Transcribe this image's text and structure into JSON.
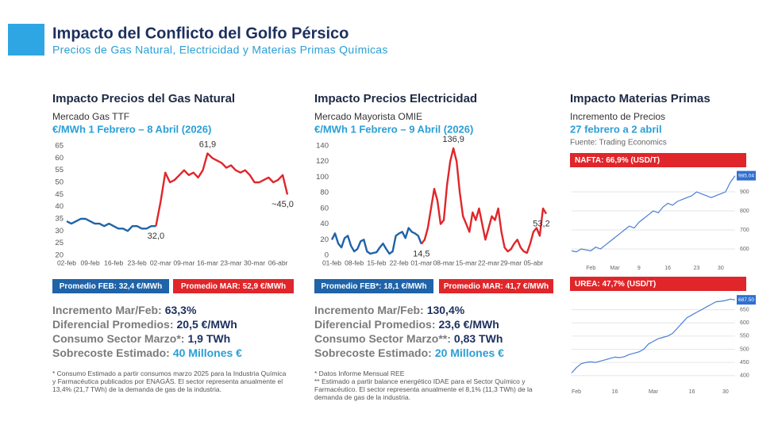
{
  "header": {
    "title": "Impacto del Conflicto del Golfo Pérsico",
    "subtitle": "Precios de Gas Natural, Electricidad y Materias Primas Químicas"
  },
  "panels": [
    {
      "heading": "Impacto Precios del Gas Natural",
      "subheading": "Mercado Gas TTF",
      "period": "€/MWh 1 Febrero – 8 Abril (2026)",
      "stats": [
        [
          "Incremento Mar/Feb:",
          "63,3%"
        ],
        [
          "Diferencial Promedios:",
          "20,5 €/MWh"
        ],
        [
          "Consumo Sector Marzo*:",
          "1,9 TWh"
        ],
        [
          "Sobrecoste Estimado:",
          "40 Millones €"
        ]
      ],
      "footnotes": [
        "* Consumo Estimado a partir consumos marzo 2025 para la Industria Química y Farmacéutica publicados por ENAGÁS. El sector representa anualmente el 13,4% (21,7 TWh) de la demanda de gas de la industria."
      ]
    },
    {
      "heading": "Impacto Precios Electricidad",
      "subheading": "Mercado Mayorista OMIE",
      "period": "€/MWh 1 Febrero – 9 Abril (2026)",
      "stats": [
        [
          "Incremento Mar/Feb:",
          "130,4%"
        ],
        [
          "Diferencial Promedios:",
          "23,6 €/MWh"
        ],
        [
          "Consumo Sector Marzo**:",
          "0,83 TWh"
        ],
        [
          "Sobrecoste Estimado:",
          "20 Millones €"
        ]
      ],
      "footnotes": [
        "*    Datos Informe Mensual REE",
        "**  Estimado a partir balance energético IDAE para el Sector Químico y Farmacéutico. El sector representa anualmente el 8,1% (11,3 TWh) de la demanda de gas de la industria."
      ]
    },
    {
      "heading": "Impacto Materias Primas",
      "subheading": "Incremento de Precios",
      "period": "27 febrero a 2 abril",
      "source": "Fuente: Trading Economics"
    }
  ],
  "chart_data": [
    {
      "type": "line",
      "categories": [
        "02-feb",
        null,
        null,
        null,
        null,
        "09-feb",
        null,
        null,
        null,
        null,
        "16-feb",
        null,
        null,
        null,
        null,
        "23-feb",
        null,
        null,
        null,
        null,
        "02-mar",
        null,
        null,
        null,
        null,
        "09-mar",
        null,
        null,
        null,
        null,
        "16-mar",
        null,
        null,
        null,
        null,
        "23-mar",
        null,
        null,
        null,
        null,
        "30-mar",
        null,
        null,
        null,
        null,
        "06-abr",
        null,
        null
      ],
      "ylim": [
        20,
        65
      ],
      "yticks": [
        20,
        25,
        30,
        35,
        40,
        45,
        50,
        55,
        60,
        65
      ],
      "grid": false,
      "yaxis_position": "left",
      "series": [
        {
          "name": "Promedio FEB: 32,4 €/MWh",
          "color": "#1f63a8",
          "values": [
            34,
            33,
            34,
            35,
            35,
            34,
            33,
            33,
            32,
            33,
            32,
            31,
            31,
            30,
            32,
            32,
            31,
            31,
            32,
            32,
            null,
            null,
            null,
            null,
            null,
            null,
            null,
            null,
            null,
            null,
            null,
            null,
            null,
            null,
            null,
            null,
            null,
            null,
            null,
            null,
            null,
            null,
            null,
            null,
            null,
            null,
            null,
            null
          ]
        },
        {
          "name": "Promedio MAR: 52,9 €/MWh",
          "color": "#e0262a",
          "values": [
            null,
            null,
            null,
            null,
            null,
            null,
            null,
            null,
            null,
            null,
            null,
            null,
            null,
            null,
            null,
            null,
            null,
            null,
            null,
            32,
            42,
            54,
            50,
            51,
            53,
            55,
            53,
            54,
            52,
            55,
            61.9,
            60,
            59,
            58,
            56,
            57,
            55,
            54,
            55,
            53,
            50,
            50,
            51,
            52,
            50,
            51,
            53,
            45
          ],
          "value_labels": [
            null,
            null,
            null,
            null,
            null,
            null,
            null,
            null,
            null,
            null,
            null,
            null,
            null,
            null,
            null,
            null,
            null,
            null,
            null,
            "32,0",
            null,
            null,
            null,
            null,
            null,
            null,
            null,
            null,
            null,
            null,
            "61,9",
            null,
            null,
            null,
            null,
            null,
            null,
            null,
            null,
            null,
            null,
            null,
            null,
            null,
            null,
            null,
            null,
            "~45,0"
          ]
        }
      ]
    },
    {
      "type": "line",
      "categories": [
        "01-feb",
        null,
        null,
        null,
        null,
        null,
        null,
        "08-feb",
        null,
        null,
        null,
        null,
        null,
        null,
        "15-feb",
        null,
        null,
        null,
        null,
        null,
        null,
        "22-feb",
        null,
        null,
        null,
        null,
        null,
        null,
        "01-mar",
        null,
        null,
        null,
        null,
        null,
        null,
        "08-mar",
        null,
        null,
        null,
        null,
        null,
        null,
        "15-mar",
        null,
        null,
        null,
        null,
        null,
        null,
        "22-mar",
        null,
        null,
        null,
        null,
        null,
        null,
        "29-mar",
        null,
        null,
        null,
        null,
        null,
        null,
        "05-abr",
        null,
        null,
        null,
        null
      ],
      "ylim": [
        0,
        140
      ],
      "yticks": [
        0,
        20,
        40,
        60,
        80,
        100,
        120,
        140
      ],
      "grid": false,
      "yaxis_position": "left",
      "series": [
        {
          "name": "Promedio FEB*: 18,1 €/MWh",
          "color": "#1f63a8",
          "values": [
            20,
            28,
            15,
            10,
            22,
            25,
            12,
            5,
            8,
            18,
            20,
            5,
            2,
            3,
            4,
            10,
            15,
            8,
            2,
            5,
            25,
            28,
            30,
            22,
            35,
            30,
            28,
            25,
            14.5,
            null,
            null,
            null,
            null,
            null,
            null,
            null,
            null,
            null,
            null,
            null,
            null,
            null,
            null,
            null,
            null,
            null,
            null,
            null,
            null,
            null,
            null,
            null,
            null,
            null,
            null,
            null,
            null,
            null,
            null,
            null,
            null,
            null,
            null,
            null,
            null,
            null,
            null,
            null
          ]
        },
        {
          "name": "Promedio MAR: 41,7 €/MWh",
          "color": "#e0262a",
          "values": [
            null,
            null,
            null,
            null,
            null,
            null,
            null,
            null,
            null,
            null,
            null,
            null,
            null,
            null,
            null,
            null,
            null,
            null,
            null,
            null,
            null,
            null,
            null,
            null,
            null,
            null,
            null,
            null,
            14.5,
            20,
            35,
            60,
            85,
            70,
            40,
            45,
            90,
            120,
            136.9,
            120,
            80,
            50,
            40,
            30,
            55,
            45,
            60,
            40,
            20,
            35,
            50,
            45,
            60,
            30,
            10,
            5,
            8,
            15,
            20,
            10,
            5,
            3,
            15,
            30,
            35,
            25,
            60,
            53.2
          ],
          "value_labels": [
            null,
            null,
            null,
            null,
            null,
            null,
            null,
            null,
            null,
            null,
            null,
            null,
            null,
            null,
            null,
            null,
            null,
            null,
            null,
            null,
            null,
            null,
            null,
            null,
            null,
            null,
            null,
            null,
            "14,5",
            null,
            null,
            null,
            null,
            null,
            null,
            null,
            null,
            null,
            "136,9",
            null,
            null,
            null,
            null,
            null,
            null,
            null,
            null,
            null,
            null,
            null,
            null,
            null,
            null,
            null,
            null,
            null,
            null,
            null,
            null,
            null,
            null,
            null,
            null,
            null,
            null,
            null,
            null,
            "53,2"
          ]
        }
      ]
    },
    {
      "type": "line",
      "title": "NAFTA: 66,9%  (USD/T)",
      "categories": [
        null,
        null,
        null,
        null,
        "Feb",
        null,
        null,
        null,
        null,
        "Mar",
        null,
        null,
        null,
        null,
        "9",
        null,
        null,
        null,
        null,
        null,
        "16",
        null,
        null,
        null,
        null,
        null,
        "23",
        null,
        null,
        null,
        null,
        "30",
        null,
        null,
        null
      ],
      "ylim": [
        550,
        1000
      ],
      "yticks": [
        600,
        700,
        800,
        900
      ],
      "grid": true,
      "yaxis_position": "right",
      "series": [
        {
          "color": "#4a7fd4",
          "values": [
            590,
            585,
            600,
            595,
            590,
            610,
            600,
            620,
            640,
            660,
            680,
            700,
            720,
            710,
            740,
            760,
            780,
            800,
            790,
            820,
            840,
            830,
            850,
            860,
            870,
            880,
            900,
            890,
            880,
            870,
            880,
            890,
            900,
            950,
            985.04
          ],
          "value_labels": [
            null,
            null,
            null,
            null,
            null,
            null,
            null,
            null,
            null,
            null,
            null,
            null,
            null,
            null,
            null,
            null,
            null,
            null,
            null,
            null,
            null,
            null,
            null,
            null,
            null,
            null,
            null,
            null,
            null,
            null,
            null,
            null,
            null,
            null,
            "985.04"
          ]
        }
      ]
    },
    {
      "type": "line",
      "title": "UREA: 47,7%  (USD/T)",
      "categories": [
        null,
        "Feb",
        null,
        null,
        null,
        null,
        null,
        null,
        null,
        "16",
        null,
        null,
        null,
        null,
        null,
        null,
        null,
        "Mar",
        null,
        null,
        null,
        null,
        null,
        null,
        null,
        "16",
        null,
        null,
        null,
        null,
        null,
        null,
        "30",
        null,
        null
      ],
      "ylim": [
        375,
        700
      ],
      "yticks": [
        400,
        450,
        500,
        550,
        600,
        650
      ],
      "grid": true,
      "yaxis_position": "right",
      "series": [
        {
          "color": "#4a7fd4",
          "values": [
            410,
            430,
            445,
            450,
            452,
            450,
            455,
            460,
            465,
            470,
            468,
            472,
            480,
            485,
            490,
            500,
            520,
            530,
            540,
            545,
            550,
            560,
            580,
            600,
            620,
            630,
            640,
            650,
            660,
            670,
            680,
            682,
            685,
            690,
            687.5
          ],
          "value_labels": [
            null,
            null,
            null,
            null,
            null,
            null,
            null,
            null,
            null,
            null,
            null,
            null,
            null,
            null,
            null,
            null,
            null,
            null,
            null,
            null,
            null,
            null,
            null,
            null,
            null,
            null,
            null,
            null,
            null,
            null,
            null,
            null,
            null,
            null,
            "687.50"
          ]
        }
      ]
    }
  ]
}
